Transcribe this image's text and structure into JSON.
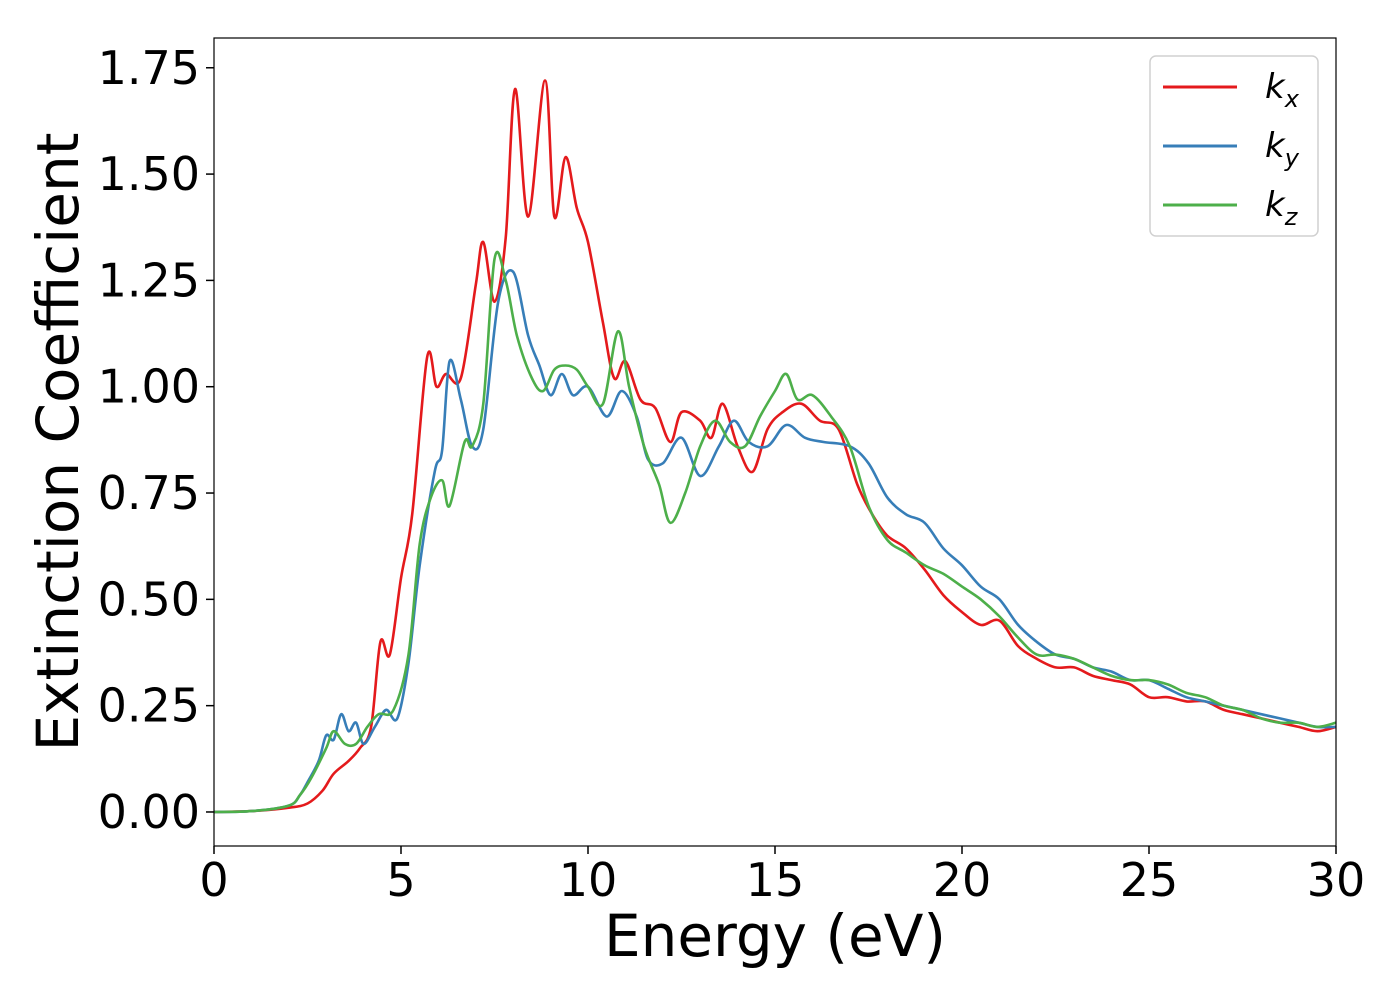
{
  "chart_data": {
    "type": "line",
    "xlabel": "Energy (eV)",
    "ylabel": "Extinction Coefficient",
    "xlim": [
      0,
      30
    ],
    "ylim": [
      -0.08,
      1.82
    ],
    "xticks": [
      "0",
      "5",
      "10",
      "15",
      "20",
      "25",
      "30"
    ],
    "yticks": [
      "0.00",
      "0.25",
      "0.50",
      "0.75",
      "1.00",
      "1.25",
      "1.50",
      "1.75"
    ],
    "legend_position": "top-right",
    "grid": false,
    "series": [
      {
        "name": "k",
        "subscript": "x",
        "color": "#e41a1c",
        "points": [
          [
            0,
            0
          ],
          [
            1,
            0.002
          ],
          [
            2,
            0.01
          ],
          [
            2.5,
            0.02
          ],
          [
            2.9,
            0.05
          ],
          [
            3.2,
            0.09
          ],
          [
            3.6,
            0.12
          ],
          [
            3.9,
            0.15
          ],
          [
            4.2,
            0.2
          ],
          [
            4.45,
            0.4
          ],
          [
            4.7,
            0.37
          ],
          [
            5,
            0.55
          ],
          [
            5.3,
            0.7
          ],
          [
            5.7,
            1.07
          ],
          [
            5.95,
            1.0
          ],
          [
            6.2,
            1.03
          ],
          [
            6.6,
            1.02
          ],
          [
            7,
            1.24
          ],
          [
            7.2,
            1.34
          ],
          [
            7.5,
            1.2
          ],
          [
            7.8,
            1.35
          ],
          [
            8.05,
            1.7
          ],
          [
            8.4,
            1.4
          ],
          [
            8.85,
            1.72
          ],
          [
            9.1,
            1.4
          ],
          [
            9.4,
            1.54
          ],
          [
            9.7,
            1.42
          ],
          [
            10,
            1.34
          ],
          [
            10.4,
            1.15
          ],
          [
            10.7,
            1.02
          ],
          [
            11,
            1.06
          ],
          [
            11.4,
            0.97
          ],
          [
            11.8,
            0.95
          ],
          [
            12.2,
            0.87
          ],
          [
            12.5,
            0.94
          ],
          [
            13,
            0.92
          ],
          [
            13.3,
            0.88
          ],
          [
            13.6,
            0.96
          ],
          [
            14,
            0.86
          ],
          [
            14.4,
            0.8
          ],
          [
            14.8,
            0.9
          ],
          [
            15.2,
            0.94
          ],
          [
            15.7,
            0.96
          ],
          [
            16.2,
            0.92
          ],
          [
            16.7,
            0.9
          ],
          [
            17.2,
            0.77
          ],
          [
            17.6,
            0.7
          ],
          [
            18,
            0.65
          ],
          [
            18.5,
            0.62
          ],
          [
            19,
            0.57
          ],
          [
            19.5,
            0.51
          ],
          [
            20,
            0.47
          ],
          [
            20.5,
            0.44
          ],
          [
            21,
            0.45
          ],
          [
            21.5,
            0.39
          ],
          [
            22,
            0.36
          ],
          [
            22.5,
            0.34
          ],
          [
            23,
            0.34
          ],
          [
            23.5,
            0.32
          ],
          [
            24,
            0.31
          ],
          [
            24.5,
            0.3
          ],
          [
            25,
            0.27
          ],
          [
            25.5,
            0.27
          ],
          [
            26,
            0.26
          ],
          [
            26.5,
            0.26
          ],
          [
            27,
            0.24
          ],
          [
            27.5,
            0.23
          ],
          [
            28,
            0.22
          ],
          [
            28.5,
            0.21
          ],
          [
            29,
            0.2
          ],
          [
            29.5,
            0.19
          ],
          [
            30,
            0.2
          ]
        ]
      },
      {
        "name": "k",
        "subscript": "y",
        "color": "#377eb8",
        "points": [
          [
            0,
            0
          ],
          [
            1,
            0.002
          ],
          [
            2,
            0.015
          ],
          [
            2.3,
            0.04
          ],
          [
            2.5,
            0.07
          ],
          [
            2.8,
            0.12
          ],
          [
            3,
            0.18
          ],
          [
            3.2,
            0.17
          ],
          [
            3.4,
            0.23
          ],
          [
            3.6,
            0.19
          ],
          [
            3.8,
            0.21
          ],
          [
            4,
            0.16
          ],
          [
            4.3,
            0.2
          ],
          [
            4.6,
            0.24
          ],
          [
            4.9,
            0.22
          ],
          [
            5.2,
            0.35
          ],
          [
            5.5,
            0.58
          ],
          [
            5.9,
            0.8
          ],
          [
            6.1,
            0.85
          ],
          [
            6.3,
            1.06
          ],
          [
            6.6,
            0.97
          ],
          [
            6.9,
            0.86
          ],
          [
            7.2,
            0.9
          ],
          [
            7.6,
            1.2
          ],
          [
            8,
            1.27
          ],
          [
            8.4,
            1.12
          ],
          [
            8.7,
            1.05
          ],
          [
            9,
            0.98
          ],
          [
            9.3,
            1.03
          ],
          [
            9.6,
            0.98
          ],
          [
            10,
            1.0
          ],
          [
            10.5,
            0.93
          ],
          [
            10.9,
            0.99
          ],
          [
            11.3,
            0.93
          ],
          [
            11.6,
            0.83
          ],
          [
            12,
            0.82
          ],
          [
            12.5,
            0.88
          ],
          [
            13,
            0.79
          ],
          [
            13.5,
            0.86
          ],
          [
            13.9,
            0.92
          ],
          [
            14.3,
            0.87
          ],
          [
            14.8,
            0.86
          ],
          [
            15.3,
            0.91
          ],
          [
            15.8,
            0.88
          ],
          [
            16.3,
            0.87
          ],
          [
            17,
            0.86
          ],
          [
            17.5,
            0.82
          ],
          [
            18,
            0.74
          ],
          [
            18.5,
            0.7
          ],
          [
            19,
            0.68
          ],
          [
            19.5,
            0.62
          ],
          [
            20,
            0.58
          ],
          [
            20.5,
            0.53
          ],
          [
            21,
            0.5
          ],
          [
            21.5,
            0.44
          ],
          [
            22,
            0.4
          ],
          [
            22.5,
            0.37
          ],
          [
            23,
            0.36
          ],
          [
            23.5,
            0.34
          ],
          [
            24,
            0.33
          ],
          [
            24.5,
            0.31
          ],
          [
            25,
            0.31
          ],
          [
            25.5,
            0.29
          ],
          [
            26,
            0.27
          ],
          [
            26.5,
            0.26
          ],
          [
            27,
            0.25
          ],
          [
            27.5,
            0.24
          ],
          [
            28,
            0.23
          ],
          [
            28.5,
            0.22
          ],
          [
            29,
            0.21
          ],
          [
            29.5,
            0.2
          ],
          [
            30,
            0.2
          ]
        ]
      },
      {
        "name": "k",
        "subscript": "z",
        "color": "#4daf4a",
        "points": [
          [
            0,
            0
          ],
          [
            1,
            0.002
          ],
          [
            2,
            0.015
          ],
          [
            2.3,
            0.04
          ],
          [
            2.6,
            0.08
          ],
          [
            3,
            0.15
          ],
          [
            3.2,
            0.19
          ],
          [
            3.5,
            0.16
          ],
          [
            3.8,
            0.16
          ],
          [
            4.1,
            0.2
          ],
          [
            4.4,
            0.23
          ],
          [
            4.8,
            0.24
          ],
          [
            5.2,
            0.37
          ],
          [
            5.5,
            0.63
          ],
          [
            5.8,
            0.74
          ],
          [
            6.1,
            0.78
          ],
          [
            6.3,
            0.72
          ],
          [
            6.7,
            0.87
          ],
          [
            6.9,
            0.86
          ],
          [
            7.2,
            0.96
          ],
          [
            7.5,
            1.3
          ],
          [
            7.8,
            1.25
          ],
          [
            8.1,
            1.12
          ],
          [
            8.5,
            1.02
          ],
          [
            8.8,
            0.99
          ],
          [
            9.1,
            1.04
          ],
          [
            9.4,
            1.05
          ],
          [
            9.7,
            1.04
          ],
          [
            10,
            1.0
          ],
          [
            10.4,
            0.96
          ],
          [
            10.8,
            1.13
          ],
          [
            11.1,
            1.0
          ],
          [
            11.5,
            0.86
          ],
          [
            11.9,
            0.77
          ],
          [
            12.2,
            0.68
          ],
          [
            12.6,
            0.75
          ],
          [
            13,
            0.86
          ],
          [
            13.4,
            0.92
          ],
          [
            13.8,
            0.87
          ],
          [
            14.2,
            0.86
          ],
          [
            14.6,
            0.93
          ],
          [
            15,
            0.99
          ],
          [
            15.3,
            1.03
          ],
          [
            15.6,
            0.97
          ],
          [
            16,
            0.98
          ],
          [
            16.5,
            0.93
          ],
          [
            17,
            0.86
          ],
          [
            17.5,
            0.72
          ],
          [
            18,
            0.64
          ],
          [
            18.5,
            0.61
          ],
          [
            19,
            0.58
          ],
          [
            19.5,
            0.56
          ],
          [
            20,
            0.53
          ],
          [
            20.5,
            0.5
          ],
          [
            21,
            0.46
          ],
          [
            21.5,
            0.41
          ],
          [
            22,
            0.37
          ],
          [
            22.5,
            0.37
          ],
          [
            23,
            0.36
          ],
          [
            23.5,
            0.34
          ],
          [
            24,
            0.32
          ],
          [
            24.5,
            0.31
          ],
          [
            25,
            0.31
          ],
          [
            25.5,
            0.3
          ],
          [
            26,
            0.28
          ],
          [
            26.5,
            0.27
          ],
          [
            27,
            0.25
          ],
          [
            27.5,
            0.24
          ],
          [
            28,
            0.22
          ],
          [
            28.5,
            0.21
          ],
          [
            29,
            0.21
          ],
          [
            29.5,
            0.2
          ],
          [
            30,
            0.21
          ]
        ]
      }
    ]
  }
}
